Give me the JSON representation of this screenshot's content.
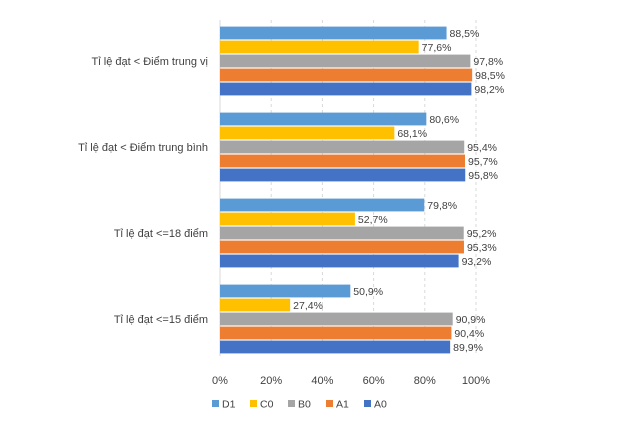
{
  "chart_data": {
    "type": "bar",
    "orientation": "horizontal",
    "categories": [
      "Tỉ lệ đạt < Điểm trung vị",
      "Tỉ lệ đạt < Điểm trung bình",
      "Tỉ lệ đạt <=18 điểm",
      "Tỉ lệ đạt <=15 điểm"
    ],
    "series": [
      {
        "name": "D1",
        "color": "#5b9bd5",
        "values": [
          88.5,
          80.6,
          79.8,
          50.9
        ],
        "labels": [
          "88,5%",
          "80,6%",
          "79,8%",
          "50,9%"
        ]
      },
      {
        "name": "C0",
        "color": "#ffc000",
        "values": [
          77.6,
          68.1,
          52.7,
          27.4
        ],
        "labels": [
          "77,6%",
          "68,1%",
          "52,7%",
          "27,4%"
        ]
      },
      {
        "name": "B0",
        "color": "#a5a5a5",
        "values": [
          97.8,
          95.4,
          95.2,
          90.9
        ],
        "labels": [
          "97,8%",
          "95,4%",
          "95,2%",
          "90,9%"
        ]
      },
      {
        "name": "A1",
        "color": "#ed7d31",
        "values": [
          98.5,
          95.7,
          95.3,
          90.4
        ],
        "labels": [
          "98,5%",
          "95,7%",
          "95,3%",
          "90,4%"
        ]
      },
      {
        "name": "A0",
        "color": "#4472c4",
        "values": [
          98.2,
          95.8,
          93.2,
          89.9
        ],
        "labels": [
          "98,2%",
          "95,8%",
          "93,2%",
          "89,9%"
        ]
      }
    ],
    "xlim": [
      0,
      100
    ],
    "x_ticks": [
      "0%",
      "20%",
      "40%",
      "60%",
      "80%",
      "100%"
    ],
    "grid": true,
    "legend": "bottom-left"
  }
}
